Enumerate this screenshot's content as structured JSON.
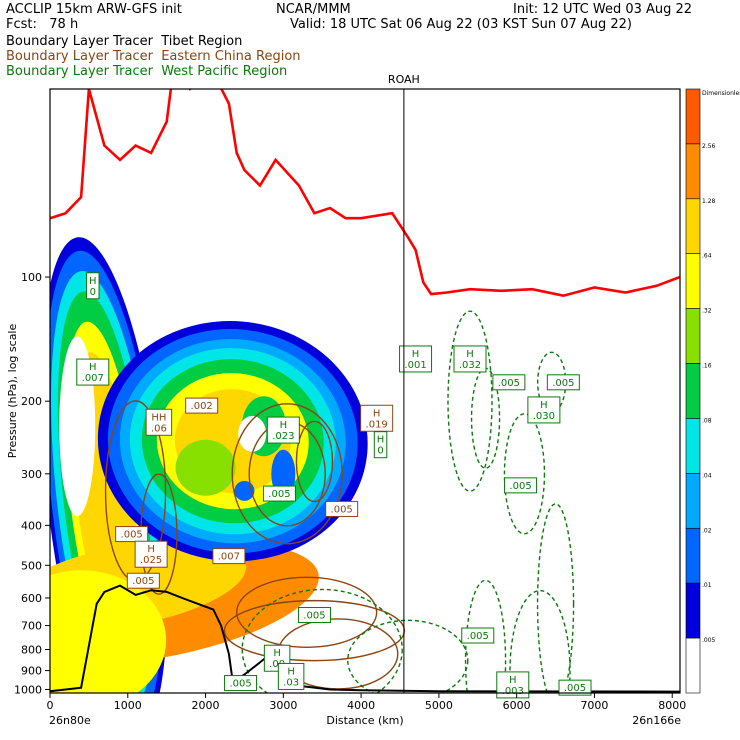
{
  "header": {
    "model": "ACCLIP 15km ARW-GFS init",
    "forecast": "Fcst:   78 h",
    "center": "NCAR/MMM",
    "init": "Init: 12 UTC Wed 03 Aug 22",
    "valid": "Valid: 18 UTC Sat 06 Aug 22 (03 KST Sun 07 Aug 22)",
    "tracers": [
      {
        "label": "Boundary Layer Tracer  Tibet Region",
        "color": "#000000"
      },
      {
        "label": "Boundary Layer Tracer  Eastern China Region",
        "color": "#8B4513"
      },
      {
        "label": "Boundary Layer Tracer  West Pacific Region",
        "color": "#0a7a0a"
      }
    ]
  },
  "chart_data": {
    "type": "contour-cross-section",
    "xlabel": "Distance (km)",
    "ylabel": "Pressure (hPa), log scale",
    "x_ticks": [
      "0",
      "1000",
      "2000",
      "3000",
      "4000",
      "5000",
      "6000",
      "7000",
      "8000"
    ],
    "xlim": [
      0,
      8100
    ],
    "y_ticks": [
      "100",
      "200",
      "300",
      "400",
      "500",
      "600",
      "700",
      "800",
      "900",
      "1000"
    ],
    "ylim": [
      1020,
      35
    ],
    "y_scale": "log",
    "left_endpoint": "26n80e",
    "right_endpoint": "26n166e",
    "marker": {
      "label": "ROAH",
      "x": 4550
    },
    "colorbar": {
      "labels": [
        "Dimensionless",
        "2.56",
        "1.28",
        ".64",
        ".32",
        ".16",
        ".08",
        ".04",
        ".02",
        ".01",
        ".005"
      ],
      "colors": [
        "#ff5a00",
        "#ff8c00",
        "#ffd700",
        "#ffff00",
        "#88e000",
        "#00cc44",
        "#00e6e6",
        "#00aaff",
        "#0066ff",
        "#0000dd",
        "#ffffff"
      ]
    },
    "tropopause_color": "#ff0000",
    "terrain_color": "#000000",
    "maxima_labels": [
      {
        "text": "H\n0",
        "x": 550,
        "p": 105,
        "color": "#0a7a0a"
      },
      {
        "text": "H\n.007",
        "x": 550,
        "p": 170,
        "color": "#0a7a0a"
      },
      {
        "text": "H\n.019",
        "x": 4200,
        "p": 220,
        "color": "#8B4513"
      },
      {
        "text": "H\n0",
        "x": 4250,
        "p": 255,
        "color": "#0a7a0a"
      },
      {
        "text": "H\n.001",
        "x": 4700,
        "p": 158,
        "color": "#0a7a0a"
      },
      {
        "text": "H\n.032",
        "x": 5400,
        "p": 158,
        "color": "#0a7a0a"
      },
      {
        "text": ".005",
        "x": 5900,
        "p": 180,
        "color": "#0a7a0a"
      },
      {
        "text": ".005",
        "x": 6600,
        "p": 180,
        "color": "#0a7a0a"
      },
      {
        "text": "H\n.030",
        "x": 6350,
        "p": 210,
        "color": "#0a7a0a"
      },
      {
        "text": ".005",
        "x": 6050,
        "p": 320,
        "color": "#0a7a0a"
      },
      {
        "text": "H\n.023",
        "x": 3000,
        "p": 235,
        "color": "#0a7a0a"
      },
      {
        "text": ".002",
        "x": 1950,
        "p": 205,
        "color": "#8B4513"
      },
      {
        "text": "HH\n.06",
        "x": 1400,
        "p": 225,
        "color": "#8B4513"
      },
      {
        "text": ".005",
        "x": 2950,
        "p": 335,
        "color": "#0a7a0a"
      },
      {
        "text": ".005",
        "x": 3750,
        "p": 365,
        "color": "#8B4513"
      },
      {
        "text": ".005",
        "x": 1050,
        "p": 420,
        "color": "#8B4513"
      },
      {
        "text": "H\n.025",
        "x": 1300,
        "p": 470,
        "color": "#8B4513"
      },
      {
        "text": ".007",
        "x": 2300,
        "p": 475,
        "color": "#8B4513"
      },
      {
        "text": ".005",
        "x": 1200,
        "p": 545,
        "color": "#8B4513"
      },
      {
        "text": ".005",
        "x": 3400,
        "p": 660,
        "color": "#0a7a0a"
      },
      {
        "text": ".005",
        "x": 5500,
        "p": 740,
        "color": "#0a7a0a"
      },
      {
        "text": "H\n.00",
        "x": 2920,
        "p": 840,
        "color": "#0a7a0a"
      },
      {
        "text": "H\n.03",
        "x": 3100,
        "p": 930,
        "color": "#0a7a0a"
      },
      {
        "text": ".005",
        "x": 2450,
        "p": 965,
        "color": "#0a7a0a"
      },
      {
        "text": "H\n.003",
        "x": 5950,
        "p": 975,
        "color": "#0a7a0a"
      },
      {
        "text": ".005",
        "x": 6750,
        "p": 990,
        "color": "#0a7a0a"
      }
    ],
    "tropopause": [
      [
        0,
        72
      ],
      [
        200,
        70
      ],
      [
        400,
        64
      ],
      [
        500,
        35
      ],
      [
        700,
        48
      ],
      [
        900,
        52
      ],
      [
        1100,
        48
      ],
      [
        1300,
        50
      ],
      [
        1500,
        42
      ],
      [
        1600,
        30
      ],
      [
        1800,
        35
      ],
      [
        2100,
        32
      ],
      [
        2300,
        38
      ],
      [
        2400,
        50
      ],
      [
        2500,
        55
      ],
      [
        2700,
        60
      ],
      [
        2900,
        52
      ],
      [
        3200,
        60
      ],
      [
        3400,
        70
      ],
      [
        3600,
        68
      ],
      [
        3800,
        72
      ],
      [
        4000,
        72
      ],
      [
        4400,
        70
      ],
      [
        4600,
        80
      ],
      [
        4700,
        86
      ],
      [
        4800,
        103
      ],
      [
        4900,
        110
      ],
      [
        5100,
        109
      ],
      [
        5400,
        107
      ],
      [
        5800,
        108
      ],
      [
        6200,
        107
      ],
      [
        6600,
        111
      ],
      [
        7000,
        106
      ],
      [
        7400,
        109
      ],
      [
        7800,
        105
      ],
      [
        8100,
        100
      ]
    ],
    "terrain": [
      [
        0,
        1010
      ],
      [
        400,
        990
      ],
      [
        600,
        620
      ],
      [
        700,
        580
      ],
      [
        900,
        560
      ],
      [
        1100,
        590
      ],
      [
        1300,
        575
      ],
      [
        1500,
        580
      ],
      [
        1700,
        600
      ],
      [
        1900,
        620
      ],
      [
        2100,
        640
      ],
      [
        2200,
        700
      ],
      [
        2300,
        820
      ],
      [
        2350,
        960
      ],
      [
        2500,
        920
      ],
      [
        2700,
        860
      ],
      [
        2900,
        800
      ],
      [
        3000,
        880
      ],
      [
        3200,
        980
      ],
      [
        3600,
        1000
      ],
      [
        4000,
        1005
      ],
      [
        5000,
        1010
      ],
      [
        8100,
        1012
      ]
    ]
  }
}
